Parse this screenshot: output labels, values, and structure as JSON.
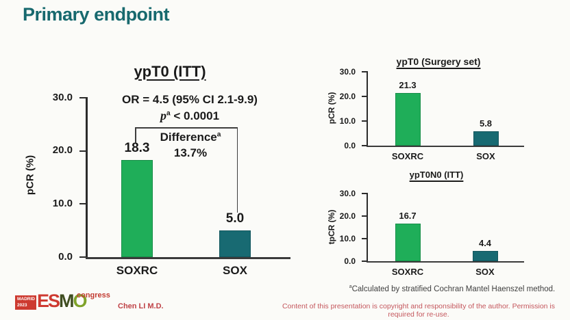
{
  "slide": {
    "title": "Primary endpoint",
    "title_color": "#17696e",
    "background": "#fbfbf8"
  },
  "chart_data": [
    {
      "type": "bar",
      "title": "ypT0 (ITT)",
      "ylabel": "pCR (%)",
      "categories": [
        "SOXRC",
        "SOX"
      ],
      "values": [
        18.3,
        5.0
      ],
      "value_labels": [
        "18.3",
        "5.0"
      ],
      "ylim": [
        0,
        30
      ],
      "yticks": [
        "30.0",
        "20.0",
        "10.0",
        "0.0"
      ],
      "bar_colors": [
        "#1fae59",
        "#186a72"
      ],
      "grid": false,
      "annotations": {
        "or_line": "OR = 4.5 (95% CI 2.1-9.9)",
        "p_italic": "p",
        "p_sup": "a",
        "p_rest": " < 0.0001",
        "difference_label": "Difference",
        "difference_sup": "a",
        "difference_value": "13.7%"
      }
    },
    {
      "type": "bar",
      "title": "ypT0 (Surgery set)",
      "ylabel": "pCR (%)",
      "categories": [
        "SOXRC",
        "SOX"
      ],
      "values": [
        21.3,
        5.8
      ],
      "value_labels": [
        "21.3",
        "5.8"
      ],
      "ylim": [
        0,
        30
      ],
      "yticks": [
        "30.0",
        "20.0",
        "10.0",
        "0.0"
      ],
      "bar_colors": [
        "#1fae59",
        "#186a72"
      ],
      "grid": false
    },
    {
      "type": "bar",
      "title": "ypT0N0 (ITT)",
      "ylabel": "tpCR (%)",
      "categories": [
        "SOXRC",
        "SOX"
      ],
      "values": [
        16.7,
        4.4
      ],
      "value_labels": [
        "16.7",
        "4.4"
      ],
      "ylim": [
        0,
        30
      ],
      "yticks": [
        "30.0",
        "20.0",
        "10.0",
        "0.0"
      ],
      "bar_colors": [
        "#1fae59",
        "#186a72"
      ],
      "grid": false
    }
  ],
  "footnote": {
    "sup": "a",
    "text": "Calculated by stratified Cochran Mantel Haenszel method."
  },
  "footer": {
    "author": "Chen LI M.D.",
    "author_color": "#bf4146",
    "copyright": "Content of this presentation is copyright and responsibility of the author. Permission is required for re-use.",
    "copyright_color": "#c4565c",
    "logo": {
      "madrid": "MADRID",
      "year": "2023",
      "esmo_e": "E",
      "esmo_s": "S",
      "esmo_m": "M",
      "esmo_o": "O",
      "congress": "congress",
      "congress_color": "#c23a31"
    }
  }
}
